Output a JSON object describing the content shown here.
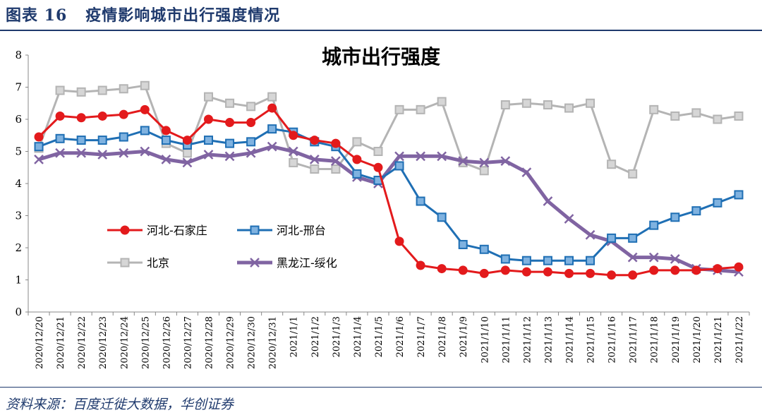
{
  "figure": {
    "label": "图表 16",
    "caption": "疫情影响城市出行强度情况",
    "source": "资料来源：百度迁徙大数据，华创证券"
  },
  "chart_data": {
    "type": "line",
    "title": "城市出行强度",
    "xlabel": "",
    "ylabel": "",
    "ylim": [
      0,
      8
    ],
    "yticks": [
      0,
      1,
      2,
      3,
      4,
      5,
      6,
      7,
      8
    ],
    "grid": false,
    "categories": [
      "2020/12/20",
      "2020/12/21",
      "2020/12/22",
      "2020/12/23",
      "2020/12/24",
      "2020/12/25",
      "2020/12/26",
      "2020/12/27",
      "2020/12/28",
      "2020/12/29",
      "2020/12/30",
      "2020/12/31",
      "2021/1/1",
      "2021/1/2",
      "2021/1/3",
      "2021/1/4",
      "2021/1/5",
      "2021/1/6",
      "2021/1/7",
      "2021/1/8",
      "2021/1/9",
      "2021/1/10",
      "2021/1/11",
      "2021/1/12",
      "2021/1/13",
      "2021/1/14",
      "2021/1/15",
      "2021/1/16",
      "2021/1/17",
      "2021/1/18",
      "2021/1/19",
      "2021/1/20",
      "2021/1/21",
      "2021/1/22"
    ],
    "series": [
      {
        "name": "北京",
        "color": "#b4b4b4",
        "marker": "square",
        "values": [
          5.1,
          6.9,
          6.85,
          6.9,
          6.95,
          7.05,
          5.25,
          4.95,
          6.7,
          6.5,
          6.4,
          6.7,
          4.65,
          4.45,
          4.45,
          5.3,
          5.0,
          6.3,
          6.3,
          6.55,
          4.65,
          4.4,
          6.45,
          6.5,
          6.45,
          6.35,
          6.5,
          4.6,
          4.3,
          6.3,
          6.1,
          6.2,
          6.0,
          6.1
        ]
      },
      {
        "name": "黑龙江-绥化",
        "color": "#8064a2",
        "marker": "x",
        "values": [
          4.75,
          4.95,
          4.95,
          4.9,
          4.95,
          5.0,
          4.75,
          4.65,
          4.9,
          4.85,
          4.95,
          5.15,
          5.0,
          4.75,
          4.7,
          4.2,
          4.0,
          4.85,
          4.85,
          4.85,
          4.7,
          4.65,
          4.7,
          4.35,
          3.45,
          2.9,
          2.4,
          2.2,
          1.7,
          1.7,
          1.65,
          1.35,
          1.3,
          1.25
        ]
      },
      {
        "name": "河北-邢台",
        "color": "#1f6fb4",
        "marker": "square",
        "values": [
          5.15,
          5.4,
          5.35,
          5.35,
          5.45,
          5.65,
          5.35,
          5.2,
          5.35,
          5.25,
          5.3,
          5.7,
          5.6,
          5.3,
          5.15,
          4.3,
          4.1,
          4.55,
          3.45,
          2.95,
          2.1,
          1.95,
          1.65,
          1.6,
          1.6,
          1.6,
          1.6,
          2.3,
          2.3,
          2.7,
          2.95,
          3.15,
          3.4,
          3.65
        ]
      },
      {
        "name": "河北-石家庄",
        "color": "#e31a1c",
        "marker": "circle",
        "values": [
          5.45,
          6.1,
          6.05,
          6.1,
          6.15,
          6.3,
          5.65,
          5.35,
          6.0,
          5.9,
          5.9,
          6.35,
          5.5,
          5.35,
          5.25,
          4.75,
          4.5,
          2.2,
          1.45,
          1.35,
          1.3,
          1.2,
          1.3,
          1.25,
          1.25,
          1.2,
          1.2,
          1.15,
          1.15,
          1.3,
          1.3,
          1.3,
          1.35,
          1.4
        ]
      }
    ],
    "legend": [
      {
        "label": "河北-石家庄",
        "series": "河北-石家庄"
      },
      {
        "label": "河北-邢台",
        "series": "河北-邢台"
      },
      {
        "label": "北京",
        "series": "北京"
      },
      {
        "label": "黑龙江-绥化",
        "series": "黑龙江-绥化"
      }
    ],
    "legend_position": "center-left"
  }
}
